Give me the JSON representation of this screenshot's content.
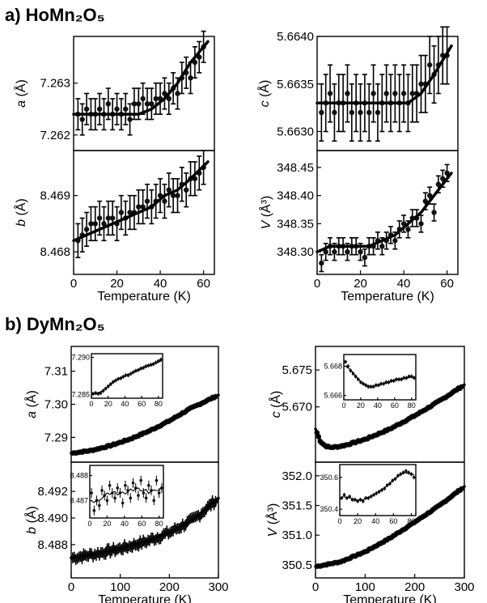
{
  "figure": {
    "panel_a_title": "a) HoMn₂O₅",
    "panel_b_title": "b) DyMn₂O₅"
  },
  "chart_data": [
    {
      "id": "ho_a",
      "type": "scatter",
      "ylabel_var": "a",
      "ylabel_unit": "(Å)",
      "xlim": [
        0,
        65
      ],
      "xticks": [],
      "ylim": [
        7.2617,
        7.2639
      ],
      "yticks": [
        7.262,
        7.263
      ],
      "ytick_labels": [
        "7.262",
        "7.263"
      ],
      "fit": "poly2-rise",
      "x": [
        2,
        4,
        6,
        8,
        10,
        12,
        14,
        16,
        18,
        20,
        22,
        24,
        26,
        28,
        30,
        32,
        34,
        36,
        38,
        40,
        42,
        44,
        46,
        48,
        50,
        52,
        54,
        56,
        58,
        60
      ],
      "y": [
        7.2624,
        7.2623,
        7.2625,
        7.2624,
        7.2624,
        7.2625,
        7.2624,
        7.2626,
        7.2624,
        7.2625,
        7.2624,
        7.2625,
        7.2623,
        7.2626,
        7.2626,
        7.2627,
        7.2626,
        7.2626,
        7.2627,
        7.2627,
        7.2628,
        7.2627,
        7.2629,
        7.2628,
        7.2631,
        7.2632,
        7.2631,
        7.2634,
        7.2635,
        7.2637
      ],
      "err": 0.0003,
      "fit_y": [
        7.2624,
        7.2624,
        7.2624,
        7.2624,
        7.2624,
        7.2624,
        7.2625,
        7.2627,
        7.263,
        7.2634,
        7.2638
      ]
    },
    {
      "id": "ho_b",
      "type": "scatter",
      "ylabel_var": "b",
      "ylabel_unit": "(Å)",
      "xlim": [
        0,
        65
      ],
      "xticks": [
        0,
        20,
        40,
        60
      ],
      "xtick_labels": [
        "0",
        "20",
        "40",
        "60"
      ],
      "ylim": [
        8.4676,
        8.4698
      ],
      "yticks": [
        8.468,
        8.469
      ],
      "ytick_labels": [
        "8.468",
        "8.469"
      ],
      "xlabel": "Temperature (K)",
      "x": [
        2,
        4,
        6,
        8,
        10,
        12,
        14,
        16,
        18,
        20,
        22,
        24,
        26,
        28,
        30,
        32,
        34,
        36,
        38,
        40,
        42,
        44,
        46,
        48,
        50,
        52,
        54,
        56,
        58,
        60
      ],
      "y": [
        8.4682,
        8.4683,
        8.4684,
        8.4685,
        8.4685,
        8.4686,
        8.4685,
        8.4686,
        8.4686,
        8.4685,
        8.4687,
        8.4686,
        8.4687,
        8.4687,
        8.4688,
        8.4688,
        8.4689,
        8.4688,
        8.4689,
        8.469,
        8.4689,
        8.4691,
        8.469,
        8.469,
        8.4692,
        8.4691,
        8.4693,
        8.4693,
        8.4694,
        8.4695
      ],
      "err": 0.0003,
      "fit_y": [
        8.4682,
        8.4683,
        8.4684,
        8.4685,
        8.4686,
        8.4687,
        8.4688,
        8.469,
        8.4691,
        8.4693,
        8.4696
      ]
    },
    {
      "id": "ho_c",
      "type": "scatter",
      "ylabel_var": "c",
      "ylabel_unit": "(Å)",
      "xlim": [
        0,
        65
      ],
      "xticks": [],
      "ylim": [
        5.6628,
        5.664
      ],
      "yticks": [
        5.663,
        5.6635,
        5.664
      ],
      "ytick_labels": [
        "5.6630",
        "5.6635",
        "5.6640"
      ],
      "x": [
        2,
        4,
        6,
        8,
        10,
        12,
        14,
        16,
        18,
        20,
        22,
        24,
        26,
        28,
        30,
        32,
        34,
        36,
        38,
        40,
        42,
        44,
        46,
        48,
        50,
        52,
        54,
        56,
        58,
        60
      ],
      "y": [
        5.6632,
        5.6633,
        5.6634,
        5.6632,
        5.6633,
        5.6633,
        5.6634,
        5.6632,
        5.6633,
        5.6632,
        5.6633,
        5.6632,
        5.6634,
        5.6632,
        5.6633,
        5.6634,
        5.6633,
        5.6634,
        5.6633,
        5.6634,
        5.6633,
        5.6634,
        5.6634,
        5.6635,
        5.6635,
        5.6637,
        5.6636,
        5.6637,
        5.6638,
        5.6638
      ],
      "err": 0.0003,
      "fit_y": [
        5.6633,
        5.6633,
        5.6633,
        5.6633,
        5.6633,
        5.6633,
        5.6633,
        5.6633,
        5.6634,
        5.6636,
        5.6639
      ]
    },
    {
      "id": "ho_v",
      "type": "scatter",
      "ylabel_var": "V",
      "ylabel_unit": "(Å³)",
      "xlim": [
        0,
        65
      ],
      "xticks": [
        0,
        20,
        40,
        60
      ],
      "xtick_labels": [
        "0",
        "20",
        "40",
        "60"
      ],
      "ylim": [
        348.26,
        348.48
      ],
      "yticks": [
        348.3,
        348.35,
        348.4,
        348.45
      ],
      "ytick_labels": [
        "348.30",
        "348.35",
        "348.40",
        "348.45"
      ],
      "xlabel": "Temperature (K)",
      "x": [
        2,
        4,
        6,
        8,
        10,
        12,
        14,
        16,
        18,
        20,
        22,
        24,
        26,
        28,
        30,
        32,
        34,
        36,
        38,
        40,
        42,
        44,
        46,
        48,
        50,
        52,
        54,
        56,
        58,
        60
      ],
      "y": [
        348.28,
        348.3,
        348.31,
        348.3,
        348.31,
        348.31,
        348.3,
        348.31,
        348.31,
        348.3,
        348.29,
        348.31,
        348.31,
        348.32,
        348.31,
        348.32,
        348.33,
        348.32,
        348.34,
        348.35,
        348.34,
        348.36,
        348.36,
        348.35,
        348.39,
        348.4,
        348.37,
        348.42,
        348.43,
        348.44
      ],
      "err": 0.015,
      "fit_y": [
        348.3,
        348.31,
        348.31,
        348.31,
        348.31,
        348.32,
        348.33,
        348.35,
        348.37,
        348.4,
        348.44
      ]
    },
    {
      "id": "dy_a",
      "type": "scatter",
      "ylabel_var": "a",
      "ylabel_unit": "(Å)",
      "xlim": [
        0,
        300
      ],
      "xticks": [],
      "ylim": [
        7.2825,
        7.3175
      ],
      "yticks": [
        7.29,
        7.3,
        7.31
      ],
      "ytick_labels": [
        "7.29",
        "7.30",
        "7.31"
      ],
      "x_points": "dense 5..295",
      "fit_y": [
        7.2852,
        7.286,
        7.2875,
        7.2895,
        7.292,
        7.295,
        7.2985,
        7.3028
      ],
      "fit_x": [
        0,
        40,
        80,
        120,
        160,
        200,
        240,
        300
      ]
    },
    {
      "id": "dy_a_inset",
      "type": "scatter",
      "xlim": [
        0,
        85
      ],
      "xticks": [
        0,
        20,
        40,
        60,
        80
      ],
      "xtick_labels": [
        "0",
        "20",
        "40",
        "60",
        "80"
      ],
      "ylim": [
        7.2845,
        7.2905
      ],
      "yticks": [
        7.285,
        7.29
      ],
      "ytick_labels": [
        "7.285",
        "7.290"
      ],
      "x": [
        2,
        5,
        8,
        11,
        14,
        17,
        20,
        23,
        26,
        29,
        32,
        35,
        38,
        41,
        44,
        47,
        50,
        53,
        56,
        59,
        62,
        65,
        68,
        71,
        74,
        77,
        80,
        83
      ],
      "y": [
        7.2851,
        7.2852,
        7.2851,
        7.2852,
        7.2855,
        7.2858,
        7.2861,
        7.2864,
        7.2867,
        7.2869,
        7.2871,
        7.2872,
        7.2874,
        7.2876,
        7.2876,
        7.2878,
        7.288,
        7.2882,
        7.2883,
        7.2885,
        7.2886,
        7.2888,
        7.2889,
        7.289,
        7.2891,
        7.2893,
        7.2895,
        7.2897
      ]
    },
    {
      "id": "dy_b",
      "type": "scatter",
      "ylabel_var": "b",
      "ylabel_unit": "(Å)",
      "xlim": [
        0,
        300
      ],
      "xticks": [
        0,
        100,
        200,
        300
      ],
      "xtick_labels": [
        "0",
        "100",
        "200",
        "300"
      ],
      "ylim": [
        8.4855,
        8.4942
      ],
      "yticks": [
        8.488,
        8.49,
        8.492
      ],
      "ytick_labels": [
        "8.488",
        "8.490",
        "8.492"
      ],
      "xlabel": "Temperature (K)",
      "fit_x": [
        0,
        50,
        100,
        150,
        200,
        250,
        300
      ],
      "fit_y": [
        8.487,
        8.4873,
        8.4877,
        8.4882,
        8.4889,
        8.4899,
        8.4915
      ]
    },
    {
      "id": "dy_b_inset",
      "type": "scatter",
      "xlim": [
        0,
        85
      ],
      "xticks": [
        0,
        20,
        40,
        60,
        80
      ],
      "xtick_labels": [
        "0",
        "20",
        "40",
        "60",
        "80"
      ],
      "ylim": [
        8.4863,
        8.4884
      ],
      "yticks": [
        8.487,
        8.488
      ],
      "ytick_labels": [
        "8.487",
        "8.488"
      ],
      "x": [
        2,
        5,
        8,
        11,
        14,
        17,
        20,
        23,
        26,
        29,
        32,
        35,
        38,
        41,
        44,
        47,
        50,
        53,
        56,
        59,
        62,
        65,
        68,
        71,
        74,
        77,
        80,
        83
      ],
      "y": [
        8.4873,
        8.4866,
        8.487,
        8.4868,
        8.4874,
        8.4872,
        8.487,
        8.4876,
        8.4873,
        8.4871,
        8.4875,
        8.4873,
        8.4869,
        8.4876,
        8.4874,
        8.4871,
        8.4877,
        8.4875,
        8.4872,
        8.4878,
        8.4873,
        8.4871,
        8.4876,
        8.4874,
        8.487,
        8.4878,
        8.4873,
        8.4875
      ]
    },
    {
      "id": "dy_c",
      "type": "scatter",
      "ylabel_var": "c",
      "ylabel_unit": "(Å)",
      "xlim": [
        0,
        300
      ],
      "xticks": [],
      "ylim": [
        5.6625,
        5.6782
      ],
      "yticks": [
        5.67,
        5.675
      ],
      "ytick_labels": [
        "5.670",
        "5.675"
      ],
      "fit_x": [
        0,
        10,
        20,
        30,
        45,
        60,
        100,
        150,
        200,
        250,
        300
      ],
      "fit_y": [
        5.667,
        5.6653,
        5.6647,
        5.6645,
        5.6646,
        5.6648,
        5.6656,
        5.667,
        5.6688,
        5.6708,
        5.673
      ]
    },
    {
      "id": "dy_c_inset",
      "type": "scatter",
      "xlim": [
        0,
        85
      ],
      "xticks": [
        0,
        20,
        40,
        60,
        80
      ],
      "xtick_labels": [
        "0",
        "20",
        "40",
        "60",
        "80"
      ],
      "ylim": [
        5.6657,
        5.6688
      ],
      "yticks": [
        5.666,
        5.668
      ],
      "ytick_labels": [
        "5.666",
        "5.668"
      ],
      "x": [
        2,
        5,
        8,
        11,
        14,
        17,
        20,
        23,
        26,
        29,
        32,
        35,
        38,
        41,
        44,
        47,
        50,
        53,
        56,
        59,
        62,
        65,
        68,
        71,
        74,
        77,
        80,
        83
      ],
      "y": [
        5.6683,
        5.668,
        5.6677,
        5.6675,
        5.6673,
        5.6671,
        5.6669,
        5.6668,
        5.6667,
        5.6666,
        5.6666,
        5.6666,
        5.6667,
        5.6667,
        5.6668,
        5.6668,
        5.6669,
        5.6669,
        5.667,
        5.667,
        5.6671,
        5.6671,
        5.6671,
        5.6672,
        5.6672,
        5.6673,
        5.6673,
        5.6672
      ]
    },
    {
      "id": "dy_v",
      "type": "scatter",
      "ylabel_var": "V",
      "ylabel_unit": "(Å³)",
      "xlim": [
        0,
        300
      ],
      "xticks": [
        0,
        100,
        200,
        300
      ],
      "xtick_labels": [
        "0",
        "100",
        "200",
        "300"
      ],
      "ylim": [
        350.28,
        352.23
      ],
      "yticks": [
        350.5,
        351.0,
        351.5,
        352.0
      ],
      "ytick_labels": [
        "350.5",
        "351.0",
        "351.5",
        "352.0"
      ],
      "xlabel": "Temperature (K)",
      "fit_x": [
        0,
        50,
        100,
        150,
        200,
        250,
        300
      ],
      "fit_y": [
        350.47,
        350.55,
        350.72,
        350.95,
        351.22,
        351.5,
        351.82
      ]
    },
    {
      "id": "dy_v_inset",
      "type": "scatter",
      "xlim": [
        0,
        85
      ],
      "xticks": [
        0,
        20,
        40,
        60,
        80
      ],
      "xtick_labels": [
        "0",
        "20",
        "40",
        "60",
        "80"
      ],
      "ylim": [
        350.36,
        350.68
      ],
      "yticks": [
        350.4,
        350.6
      ],
      "ytick_labels": [
        "350.4",
        "350.6"
      ],
      "x": [
        2,
        5,
        8,
        11,
        14,
        17,
        20,
        23,
        26,
        29,
        32,
        35,
        38,
        41,
        44,
        47,
        50,
        53,
        56,
        59,
        62,
        65,
        68,
        71,
        74,
        77,
        80,
        83
      ],
      "y": [
        350.47,
        350.49,
        350.47,
        350.48,
        350.46,
        350.46,
        350.45,
        350.46,
        350.45,
        350.47,
        350.47,
        350.48,
        350.49,
        350.5,
        350.51,
        350.52,
        350.53,
        350.55,
        350.56,
        350.58,
        350.59,
        350.61,
        350.62,
        350.63,
        350.64,
        350.63,
        350.62,
        350.6
      ]
    }
  ]
}
